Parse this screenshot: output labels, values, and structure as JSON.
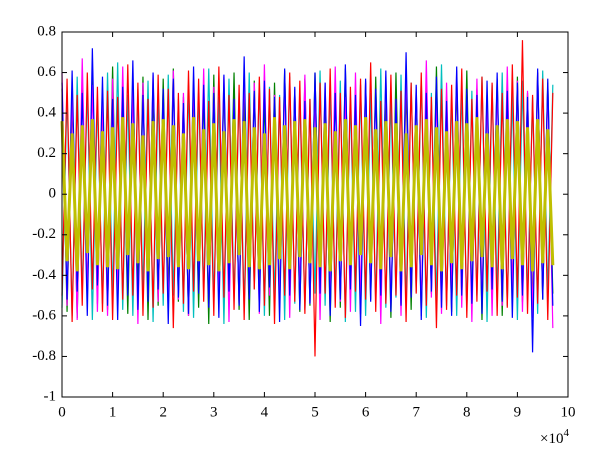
{
  "chart_data": {
    "type": "line",
    "xlim": [
      0,
      100000
    ],
    "xticks": [
      {
        "value": 0,
        "label": "0"
      },
      {
        "value": 10000,
        "label": "1"
      },
      {
        "value": 20000,
        "label": "2"
      },
      {
        "value": 30000,
        "label": "3"
      },
      {
        "value": 40000,
        "label": "4"
      },
      {
        "value": 50000,
        "label": "5"
      },
      {
        "value": 60000,
        "label": "6"
      },
      {
        "value": 70000,
        "label": "7"
      },
      {
        "value": 80000,
        "label": "8"
      },
      {
        "value": 90000,
        "label": "9"
      },
      {
        "value": 100000,
        "label": "10"
      }
    ],
    "x_multiplier": {
      "base": "×10",
      "exponent": "4"
    },
    "ylim": [
      -1,
      0.8
    ],
    "yticks": [
      -1,
      -0.8,
      -0.6,
      -0.4,
      -0.2,
      0,
      0.2,
      0.4,
      0.6,
      0.8
    ],
    "grid": false,
    "x": [
      0,
      1000,
      2000,
      3000,
      4000,
      5000,
      6000,
      7000,
      8000,
      9000,
      10000,
      11000,
      12000,
      13000,
      14000,
      15000,
      16000,
      17000,
      18000,
      19000,
      20000,
      21000,
      22000,
      23000,
      24000,
      25000,
      26000,
      27000,
      28000,
      29000,
      30000,
      31000,
      32000,
      33000,
      34000,
      35000,
      36000,
      37000,
      38000,
      39000,
      40000,
      41000,
      42000,
      43000,
      44000,
      45000,
      46000,
      47000,
      48000,
      49000,
      50000,
      51000,
      52000,
      53000,
      54000,
      55000,
      56000,
      57000,
      58000,
      59000,
      60000,
      61000,
      62000,
      63000,
      64000,
      65000,
      66000,
      67000,
      68000,
      69000,
      70000,
      71000,
      72000,
      73000,
      74000,
      75000,
      76000,
      77000,
      78000,
      79000,
      80000,
      81000,
      82000,
      83000,
      84000,
      85000,
      86000,
      87000,
      88000,
      89000,
      90000,
      91000,
      92000,
      93000,
      94000,
      95000,
      96000,
      97000
    ],
    "series": [
      {
        "color": "#008000",
        "values": [
          0.52,
          -0.58,
          0.47,
          -0.61,
          0.56,
          -0.5,
          0.6,
          -0.54,
          0.49,
          -0.57,
          0.63,
          -0.52,
          0.5,
          -0.59,
          0.55,
          -0.48,
          0.58,
          -0.62,
          0.51,
          -0.55,
          0.57,
          -0.49,
          0.62,
          -0.53,
          0.48,
          -0.6,
          0.54,
          -0.56,
          0.5,
          -0.64,
          0.59,
          -0.51,
          0.53,
          -0.47,
          0.6,
          -0.57,
          0.49,
          -0.62,
          0.56,
          -0.5,
          0.48,
          -0.6,
          0.55,
          -0.53,
          0.61,
          -0.49,
          0.52,
          -0.58,
          0.57,
          -0.55,
          0.6,
          -0.5,
          0.49,
          -0.63,
          0.54,
          -0.56,
          0.62,
          -0.48,
          0.51,
          -0.59,
          0.55,
          -0.52,
          0.58,
          -0.5,
          0.47,
          -0.61,
          0.6,
          -0.54,
          0.53,
          -0.57,
          0.5,
          -0.6,
          0.56,
          -0.49,
          0.63,
          -0.53,
          0.48,
          -0.58,
          0.55,
          -0.51,
          0.61,
          -0.55,
          0.52,
          -0.62,
          0.49,
          -0.5,
          0.57,
          -0.6,
          0.54,
          -0.48,
          0.58,
          -0.53,
          0.5,
          -0.57,
          0.6,
          -0.52,
          0.55,
          -0.49
        ]
      },
      {
        "color": "#00bfbf",
        "values": [
          -0.56,
          0.5,
          -0.6,
          0.58,
          -0.49,
          0.53,
          -0.62,
          0.47,
          -0.54,
          0.6,
          -0.51,
          0.65,
          -0.57,
          0.49,
          -0.6,
          0.52,
          -0.48,
          0.56,
          -0.63,
          0.5,
          -0.55,
          0.59,
          -0.5,
          0.47,
          -0.58,
          0.54,
          -0.61,
          0.51,
          -0.49,
          0.62,
          -0.53,
          0.48,
          -0.64,
          0.57,
          -0.52,
          0.5,
          -0.56,
          0.6,
          -0.47,
          0.55,
          -0.6,
          0.53,
          -0.51,
          0.49,
          -0.62,
          0.58,
          -0.54,
          0.5,
          -0.57,
          0.47,
          -0.49,
          0.61,
          -0.55,
          0.52,
          -0.5,
          0.56,
          -0.63,
          0.48,
          -0.58,
          0.54,
          -0.6,
          0.5,
          -0.53,
          0.62,
          -0.56,
          0.47,
          -0.51,
          0.59,
          -0.54,
          0.55,
          -0.48,
          0.57,
          -0.61,
          0.5,
          -0.52,
          0.64,
          -0.55,
          0.49,
          -0.6,
          0.53,
          -0.57,
          0.51,
          -0.5,
          0.58,
          -0.63,
          0.54,
          -0.49,
          0.6,
          -0.55,
          0.5,
          -0.62,
          0.56,
          -0.52,
          0.48,
          -0.59,
          0.61,
          -0.5,
          0.54
        ]
      },
      {
        "color": "#ff0000",
        "values": [
          -0.5,
          0.57,
          -0.63,
          0.49,
          -0.55,
          0.6,
          -0.47,
          0.53,
          -0.58,
          0.51,
          -0.62,
          0.48,
          -0.52,
          0.64,
          -0.5,
          0.55,
          -0.6,
          0.47,
          -0.56,
          0.59,
          -0.49,
          0.52,
          -0.66,
          0.5,
          -0.54,
          0.61,
          -0.48,
          0.57,
          -0.53,
          0.46,
          -0.6,
          0.63,
          -0.51,
          0.49,
          -0.57,
          0.54,
          -0.62,
          0.5,
          -0.47,
          0.58,
          -0.55,
          0.52,
          -0.64,
          0.48,
          -0.5,
          0.6,
          -0.53,
          0.56,
          -0.59,
          0.47,
          -0.8,
          0.55,
          -0.49,
          0.62,
          -0.56,
          0.5,
          -0.61,
          0.53,
          -0.48,
          0.57,
          -0.52,
          0.65,
          -0.58,
          0.46,
          -0.54,
          0.59,
          -0.5,
          0.51,
          -0.63,
          0.55,
          -0.49,
          0.6,
          -0.55,
          0.48,
          -0.66,
          0.52,
          -0.57,
          0.54,
          -0.5,
          0.62,
          -0.61,
          0.47,
          -0.53,
          0.58,
          -0.48,
          0.55,
          -0.6,
          0.5,
          -0.56,
          0.64,
          -0.51,
          0.76,
          -0.59,
          0.49,
          -0.54,
          0.57,
          -0.62,
          0.5
        ]
      },
      {
        "color": "#ff00ff",
        "values": [
          0.6,
          -0.55,
          0.5,
          -0.62,
          0.67,
          -0.49,
          0.54,
          -0.58,
          0.48,
          -0.6,
          0.57,
          -0.51,
          0.63,
          -0.47,
          0.52,
          -0.64,
          0.55,
          -0.5,
          0.59,
          -0.53,
          0.48,
          -0.57,
          0.61,
          -0.52,
          0.5,
          -0.6,
          0.56,
          -0.46,
          0.62,
          -0.55,
          0.53,
          -0.49,
          0.58,
          -0.63,
          0.47,
          -0.54,
          0.6,
          -0.51,
          0.55,
          -0.59,
          0.64,
          -0.5,
          0.49,
          -0.56,
          0.57,
          -0.61,
          0.52,
          -0.48,
          0.59,
          -0.54,
          0.5,
          -0.62,
          0.55,
          -0.47,
          0.63,
          -0.53,
          0.48,
          -0.58,
          0.6,
          -0.52,
          0.56,
          -0.49,
          0.51,
          -0.64,
          0.58,
          -0.55,
          0.47,
          -0.6,
          0.62,
          -0.5,
          0.53,
          -0.57,
          0.66,
          -0.51,
          0.49,
          -0.59,
          0.55,
          -0.48,
          0.61,
          -0.56,
          0.5,
          -0.63,
          0.57,
          -0.52,
          0.48,
          -0.6,
          0.54,
          -0.55,
          0.63,
          -0.49,
          0.56,
          -0.58,
          0.51,
          -0.61,
          0.6,
          -0.5,
          0.53,
          -0.66
        ]
      },
      {
        "color": "#0000ff",
        "values": [
          0.55,
          -0.52,
          0.61,
          -0.48,
          0.5,
          -0.6,
          0.72,
          -0.45,
          0.58,
          -0.55,
          0.47,
          -0.62,
          0.53,
          -0.5,
          0.66,
          -0.57,
          0.49,
          -0.53,
          0.6,
          -0.47,
          0.52,
          -0.64,
          0.57,
          -0.51,
          0.45,
          -0.59,
          0.63,
          -0.49,
          0.54,
          -0.56,
          0.5,
          -0.61,
          0.59,
          -0.48,
          0.47,
          -0.55,
          0.68,
          -0.52,
          0.51,
          -0.58,
          0.56,
          -0.46,
          0.48,
          -0.63,
          0.62,
          -0.5,
          0.53,
          -0.57,
          0.46,
          -0.54,
          0.6,
          -0.49,
          0.55,
          -0.6,
          0.5,
          -0.52,
          0.64,
          -0.47,
          0.49,
          -0.65,
          0.57,
          -0.53,
          0.52,
          -0.5,
          0.61,
          -0.58,
          0.47,
          -0.55,
          0.7,
          -0.51,
          0.54,
          -0.62,
          0.5,
          -0.48,
          0.58,
          -0.56,
          0.46,
          -0.6,
          0.63,
          -0.5,
          0.52,
          -0.54,
          0.49,
          -0.59,
          0.56,
          -0.47,
          0.6,
          -0.53,
          0.51,
          -0.61,
          0.55,
          -0.5,
          0.48,
          -0.78,
          0.62,
          -0.52,
          0.57,
          -0.55
        ]
      },
      {
        "color": "#bfbf00",
        "values": [
          0.36,
          -0.33,
          0.3,
          -0.38,
          0.34,
          -0.29,
          0.37,
          -0.35,
          0.31,
          -0.36,
          0.33,
          -0.37,
          0.38,
          -0.3,
          0.35,
          -0.34,
          0.29,
          -0.38,
          0.36,
          -0.32,
          0.37,
          -0.31,
          0.34,
          -0.36,
          0.3,
          -0.37,
          0.38,
          -0.33,
          0.32,
          -0.35,
          0.35,
          -0.38,
          0.31,
          -0.34,
          0.37,
          -0.3,
          0.36,
          -0.36,
          0.33,
          -0.37,
          0.3,
          -0.35,
          0.38,
          -0.32,
          0.34,
          -0.37,
          0.36,
          -0.31,
          0.37,
          -0.34,
          0.33,
          -0.36,
          0.35,
          -0.38,
          0.31,
          -0.33,
          0.37,
          -0.35,
          0.34,
          -0.3,
          0.38,
          -0.34,
          0.32,
          -0.37,
          0.36,
          -0.31,
          0.35,
          -0.38,
          0.3,
          -0.36,
          0.34,
          -0.3,
          0.37,
          -0.35,
          0.33,
          -0.38,
          0.31,
          -0.34,
          0.36,
          -0.37,
          0.35,
          -0.33,
          0.38,
          -0.31,
          0.3,
          -0.36,
          0.34,
          -0.37,
          0.37,
          -0.32,
          0.36,
          -0.35,
          0.33,
          -0.38,
          0.37,
          -0.34,
          0.32,
          -0.35
        ]
      }
    ]
  }
}
